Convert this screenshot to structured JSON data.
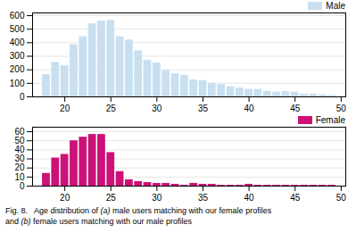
{
  "chart_data": [
    {
      "type": "bar",
      "x": [
        18,
        19,
        20,
        21,
        22,
        23,
        24,
        25,
        26,
        27,
        28,
        29,
        30,
        31,
        32,
        33,
        34,
        35,
        36,
        37,
        38,
        39,
        40,
        41,
        42,
        43,
        44,
        45,
        46,
        47,
        48,
        49
      ],
      "series": [
        {
          "name": "Male",
          "color": "#c8dff0",
          "values": [
            165,
            255,
            230,
            385,
            445,
            540,
            560,
            565,
            445,
            420,
            340,
            270,
            250,
            195,
            170,
            160,
            125,
            120,
            100,
            90,
            75,
            65,
            55,
            55,
            40,
            35,
            40,
            35,
            20,
            20,
            15,
            10
          ]
        }
      ],
      "xlim": [
        16.5,
        50.5
      ],
      "xticks": [
        20,
        25,
        30,
        35,
        40,
        45,
        50
      ],
      "ylim": [
        0,
        620
      ],
      "yticks": [
        0,
        100,
        200,
        300,
        400,
        500,
        600
      ],
      "grid": true,
      "legend": "upper right"
    },
    {
      "type": "bar",
      "x": [
        18,
        19,
        20,
        21,
        22,
        23,
        24,
        25,
        26,
        27,
        28,
        29,
        30,
        31,
        32,
        33,
        34,
        35,
        36,
        37,
        38,
        39,
        40,
        41,
        42,
        43,
        44,
        45,
        46,
        47,
        48,
        49
      ],
      "series": [
        {
          "name": "Female",
          "color": "#cc1177",
          "values": [
            14,
            31,
            35,
            50,
            54,
            57,
            57,
            37,
            16,
            7,
            5,
            4,
            3,
            3,
            2,
            1,
            3,
            2,
            2,
            1,
            1,
            1,
            2,
            1,
            1,
            1,
            1,
            1,
            1,
            1,
            1,
            1
          ]
        }
      ],
      "xlim": [
        16.5,
        50.5
      ],
      "xticks": [
        20,
        25,
        30,
        35,
        40,
        45,
        50
      ],
      "ylim": [
        0,
        65
      ],
      "yticks": [
        0,
        10,
        20,
        30,
        40,
        50,
        60
      ],
      "grid": true,
      "legend": "upper right"
    }
  ],
  "caption": [
    [
      "Fig. 8.   Age distribution of ",
      "(a)",
      " male users matching with our female profiles"
    ],
    [
      "and ",
      "(b)",
      " female users matching with our male profiles"
    ]
  ]
}
